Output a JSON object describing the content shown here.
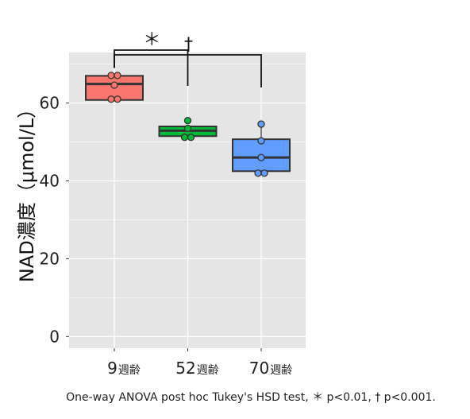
{
  "chart_data": {
    "type": "box",
    "ylabel": "NAD濃度（μmol/L）",
    "ylim": [
      -3,
      73
    ],
    "y_ticks": [
      0,
      20,
      40,
      60
    ],
    "grid": true,
    "legend": "none",
    "categories": [
      {
        "main": "9",
        "suffix": "週齢"
      },
      {
        "main": "52",
        "suffix": "週齢"
      },
      {
        "main": "70",
        "suffix": "週齢"
      }
    ],
    "boxes": [
      {
        "category": "9週齢",
        "q1": 60.8,
        "median": 64.9,
        "q3": 67.0,
        "whisker_low": 60.8,
        "whisker_high": 67.0,
        "color": "#f8766d",
        "points": [
          61.0,
          61.0,
          64.6,
          67.1,
          67.1
        ]
      },
      {
        "category": "52週齢",
        "q1": 51.5,
        "median": 52.9,
        "q3": 54.0,
        "whisker_low": 51.5,
        "whisker_high": 54.0,
        "color": "#00ba38",
        "points": [
          51.2,
          51.2,
          53.5,
          55.5
        ]
      },
      {
        "category": "70週齢",
        "q1": 42.5,
        "median": 46.0,
        "q3": 50.7,
        "whisker_low": 42.0,
        "whisker_high": 54.5,
        "color": "#619cff",
        "points": [
          42.0,
          42.0,
          46.0,
          50.3,
          54.6
        ]
      }
    ],
    "significance": [
      {
        "from": "9週齢",
        "to": "52週齢",
        "symbol": "＊"
      },
      {
        "from": "9週齢",
        "to": "70週齢",
        "symbol": "†"
      }
    ]
  },
  "footnote": "One-way ANOVA post hoc Tukey's HSD test, ＊ p<0.01, † p<0.001."
}
